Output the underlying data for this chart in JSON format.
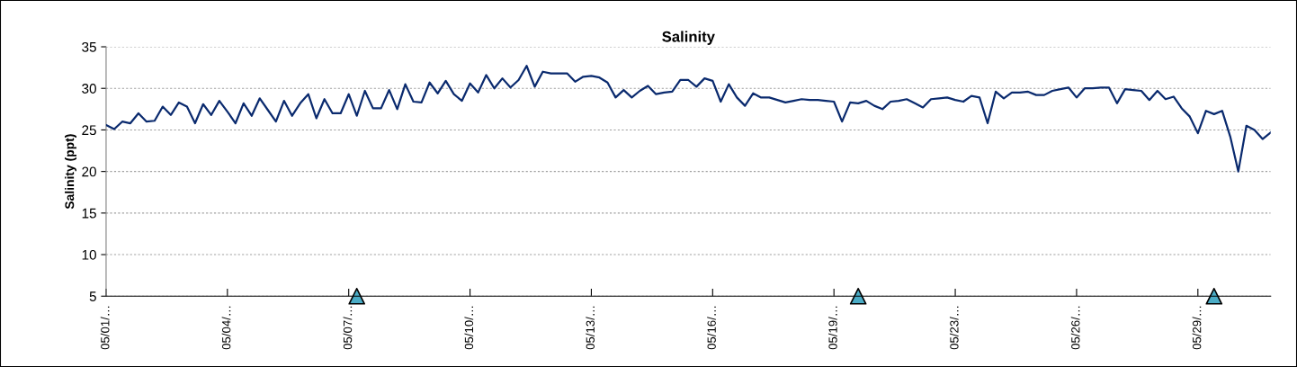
{
  "chart_data": {
    "type": "line",
    "title": "Salinity",
    "ylabel": "Salinity (ppt)",
    "ylim": [
      5,
      35
    ],
    "yticks": [
      5,
      10,
      15,
      20,
      25,
      30,
      35
    ],
    "categories": [
      "05/01/…",
      null,
      null,
      null,
      null,
      null,
      null,
      null,
      null,
      null,
      null,
      null,
      null,
      null,
      null,
      "05/04/…",
      null,
      null,
      null,
      null,
      null,
      null,
      null,
      null,
      null,
      null,
      null,
      null,
      null,
      null,
      "05/07/…",
      null,
      null,
      null,
      null,
      null,
      null,
      null,
      null,
      null,
      null,
      null,
      null,
      null,
      null,
      "05/10/…",
      null,
      null,
      null,
      null,
      null,
      null,
      null,
      null,
      null,
      null,
      null,
      null,
      null,
      null,
      "05/13/…",
      null,
      null,
      null,
      null,
      null,
      null,
      null,
      null,
      null,
      null,
      null,
      null,
      null,
      null,
      "05/16/…",
      null,
      null,
      null,
      null,
      null,
      null,
      null,
      null,
      null,
      null,
      null,
      null,
      null,
      null,
      "05/19/…",
      null,
      null,
      null,
      null,
      null,
      null,
      null,
      null,
      null,
      null,
      null,
      null,
      null,
      null,
      "05/23/…",
      null,
      null,
      null,
      null,
      null,
      null,
      null,
      null,
      null,
      null,
      null,
      null,
      null,
      null,
      "05/26/…",
      null,
      null,
      null,
      null,
      null,
      null,
      null,
      null,
      null,
      null,
      null,
      null,
      null,
      null,
      "05/29/…",
      null,
      null,
      null,
      null,
      null,
      null,
      null,
      null,
      null
    ],
    "grid": "y",
    "line_style": "solid",
    "series": [
      {
        "color": "#0a2a6e",
        "values": [
          25.6,
          25.1,
          26.0,
          25.8,
          27.0,
          26.0,
          26.1,
          27.8,
          26.8,
          28.3,
          27.8,
          25.8,
          28.1,
          26.8,
          28.5,
          27.2,
          25.8,
          28.2,
          26.7,
          28.8,
          27.4,
          26.0,
          28.5,
          26.7,
          28.2,
          29.3,
          26.4,
          28.7,
          27.0,
          27.0,
          29.3,
          26.7,
          29.7,
          27.6,
          27.6,
          29.8,
          27.5,
          30.5,
          28.4,
          28.3,
          30.7,
          29.4,
          30.9,
          29.3,
          28.5,
          30.6,
          29.5,
          31.6,
          30.0,
          31.2,
          30.1,
          31.0,
          32.7,
          30.2,
          32.0,
          31.8,
          31.8,
          31.8,
          30.8,
          31.4,
          31.5,
          31.3,
          30.7,
          28.9,
          29.8,
          28.9,
          29.7,
          30.3,
          29.3,
          29.5,
          29.6,
          31.0,
          31.0,
          30.2,
          31.2,
          30.9,
          28.4,
          30.5,
          28.9,
          27.9,
          29.4,
          28.9,
          28.9,
          28.6,
          28.3,
          28.5,
          28.7,
          28.6,
          28.6,
          28.5,
          28.4,
          26.0,
          28.3,
          28.2,
          28.5,
          27.9,
          27.5,
          28.4,
          28.5,
          28.7,
          28.2,
          27.7,
          28.7,
          28.8,
          28.9,
          28.6,
          28.4,
          29.1,
          28.9,
          25.8,
          29.6,
          28.8,
          29.5,
          29.5,
          29.6,
          29.2,
          29.2,
          29.7,
          29.9,
          30.1,
          28.9,
          30.0,
          30.0,
          30.1,
          30.1,
          28.2,
          29.9,
          29.8,
          29.7,
          28.6,
          29.7,
          28.7,
          29.0,
          27.6,
          26.6,
          24.6,
          27.3,
          26.9,
          27.3,
          24.2,
          20.0,
          25.5,
          25.0,
          23.9,
          24.7
        ]
      },
      {
        "type": "scatter",
        "marker": "triangle",
        "color": "#4bacc6",
        "values": [
          null,
          null,
          null,
          null,
          null,
          null,
          null,
          null,
          null,
          null,
          null,
          null,
          null,
          null,
          null,
          null,
          null,
          null,
          null,
          null,
          null,
          null,
          null,
          null,
          null,
          null,
          null,
          null,
          null,
          null,
          null,
          5,
          null,
          null,
          null,
          null,
          null,
          null,
          null,
          null,
          null,
          null,
          null,
          null,
          null,
          null,
          null,
          null,
          null,
          null,
          null,
          null,
          null,
          null,
          null,
          null,
          null,
          null,
          null,
          null,
          null,
          null,
          null,
          null,
          null,
          null,
          null,
          null,
          null,
          null,
          null,
          null,
          null,
          null,
          null,
          null,
          null,
          null,
          null,
          null,
          null,
          null,
          null,
          null,
          null,
          null,
          null,
          null,
          null,
          null,
          null,
          null,
          null,
          5,
          null,
          null,
          null,
          null,
          null,
          null,
          null,
          null,
          null,
          null,
          null,
          null,
          null,
          null,
          null,
          null,
          null,
          null,
          null,
          null,
          null,
          null,
          null,
          null,
          null,
          null,
          null,
          null,
          null,
          null,
          null,
          null,
          null,
          null,
          null,
          null,
          null,
          null,
          null,
          null,
          null,
          null,
          null,
          5,
          null,
          null,
          null,
          null,
          null,
          null,
          null
        ]
      }
    ]
  }
}
